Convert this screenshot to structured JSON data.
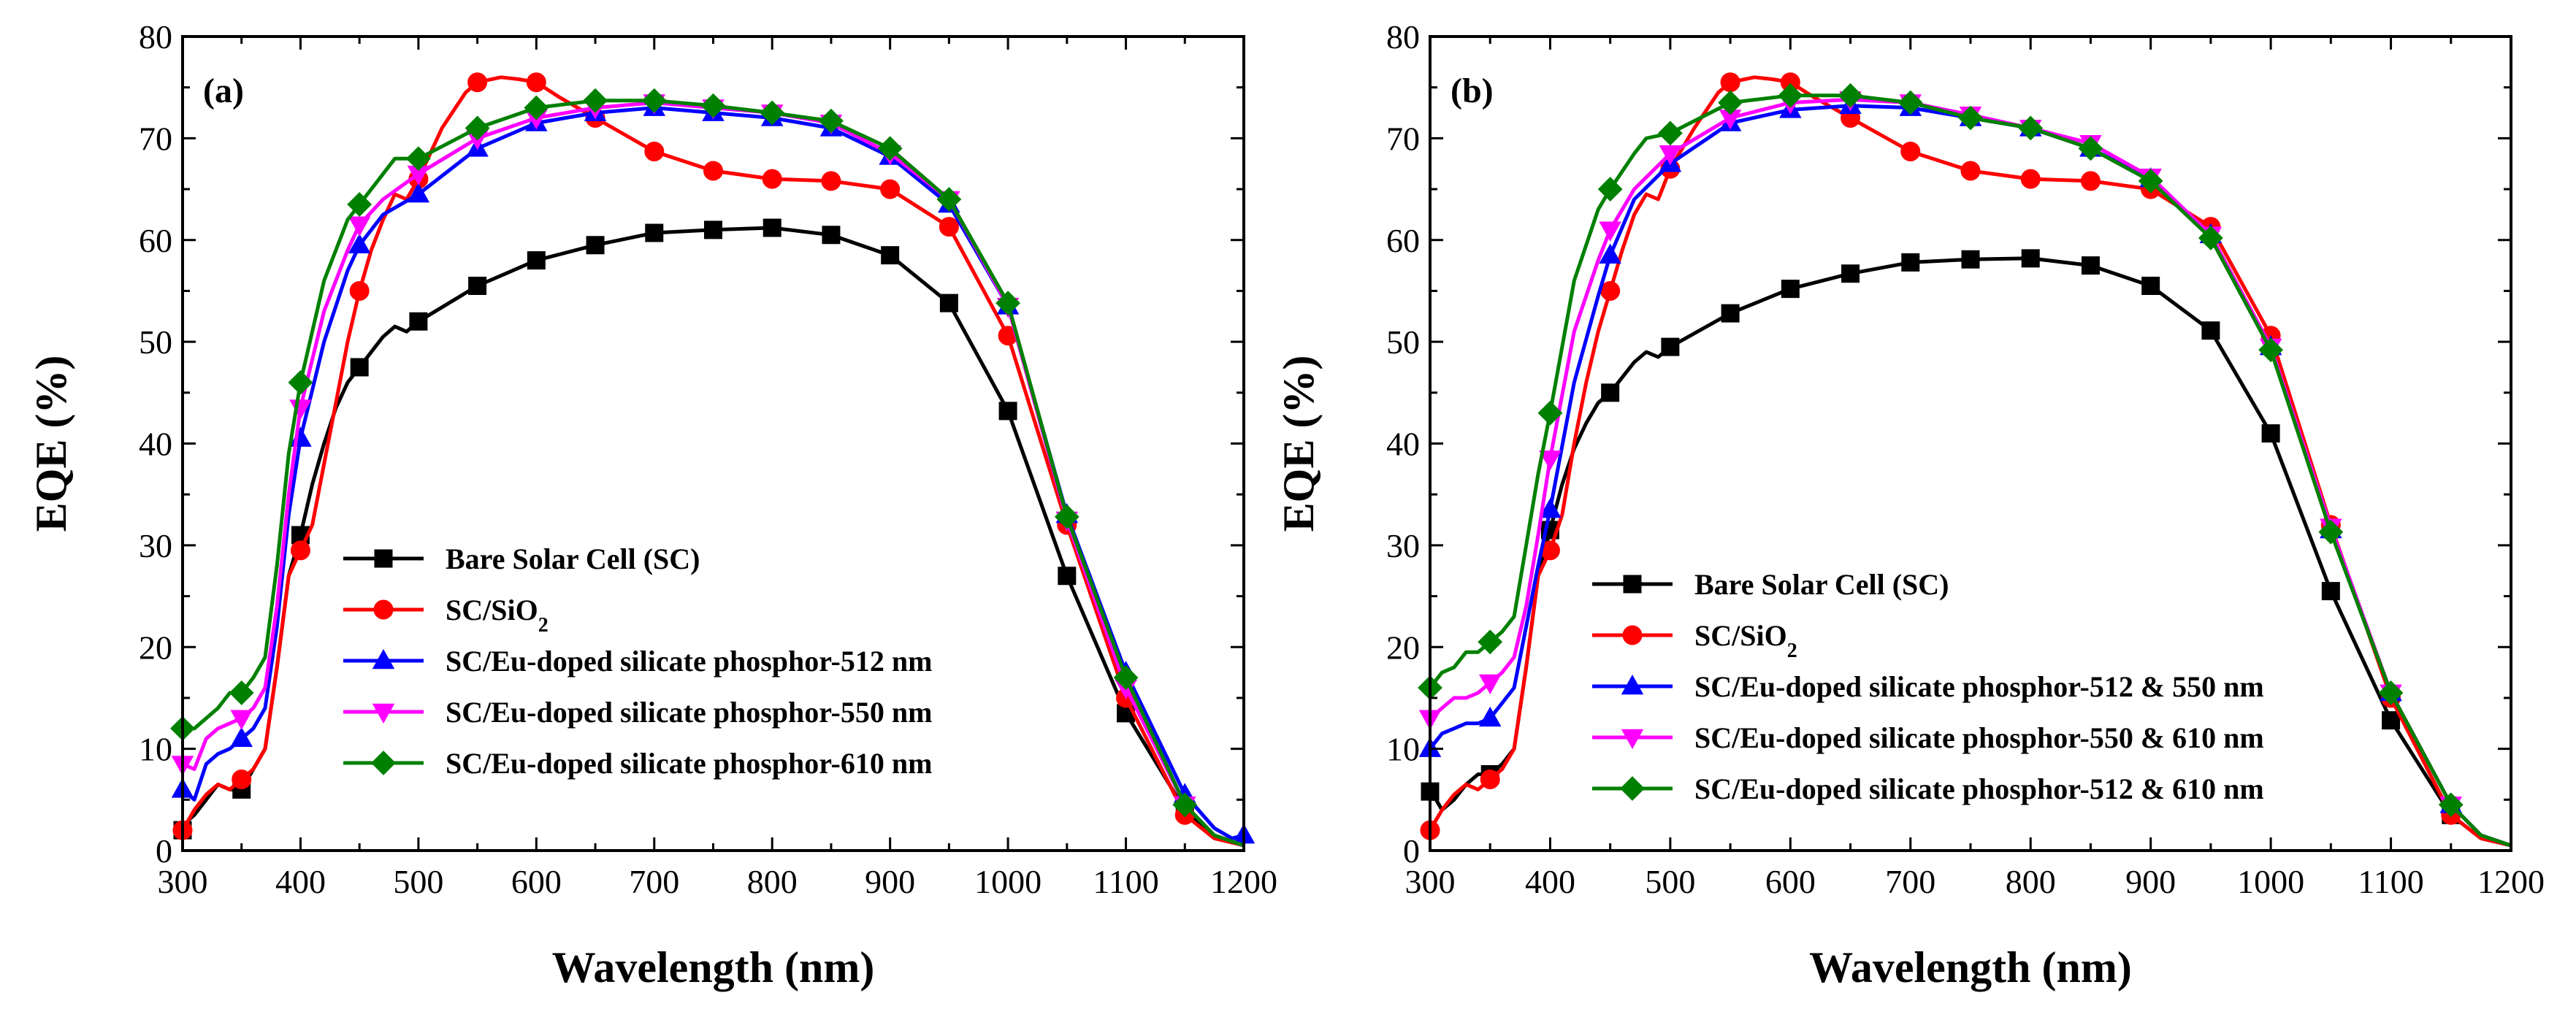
{
  "chart_data": [
    {
      "type": "line",
      "panel_label": "(a)",
      "xlabel": "Wavelength (nm)",
      "ylabel": "EQE (%)",
      "xlim": [
        300,
        1200
      ],
      "ylim": [
        0,
        80
      ],
      "xticks": [
        300,
        400,
        500,
        600,
        700,
        800,
        900,
        1000,
        1100,
        1200
      ],
      "yticks": [
        0,
        10,
        20,
        30,
        40,
        50,
        60,
        70,
        80
      ],
      "legend_position": "bottom-left",
      "series": [
        {
          "name": "Bare Solar Cell (SC)",
          "color": "#000000",
          "marker": "square",
          "x": [
            300,
            305,
            310,
            320,
            330,
            340,
            350,
            360,
            370,
            380,
            390,
            400,
            410,
            420,
            430,
            440,
            450,
            460,
            470,
            480,
            490,
            500,
            550,
            600,
            650,
            700,
            750,
            800,
            850,
            900,
            950,
            1000,
            1050,
            1100,
            1150,
            1175,
            1200
          ],
          "y": [
            2,
            3,
            3.5,
            5,
            6.5,
            6,
            6,
            8,
            10,
            18,
            27,
            31,
            36,
            40,
            43.5,
            46,
            47.5,
            49,
            50.5,
            51.5,
            51,
            52,
            55.5,
            58,
            59.5,
            60.7,
            61,
            61.2,
            60.5,
            58.5,
            53.8,
            43.2,
            27,
            13.5,
            4,
            1.5,
            0.5
          ],
          "markers_x": [
            300,
            350,
            400,
            450,
            500,
            550,
            600,
            650,
            700,
            750,
            800,
            850,
            900,
            950,
            1000,
            1050,
            1100,
            1150
          ]
        },
        {
          "name": "SC/SiO",
          "name_sub": "2",
          "color": "#ff0000",
          "marker": "circle",
          "x": [
            300,
            305,
            310,
            320,
            330,
            340,
            350,
            360,
            370,
            380,
            390,
            400,
            410,
            420,
            430,
            440,
            450,
            460,
            470,
            480,
            490,
            500,
            520,
            540,
            550,
            570,
            585,
            600,
            620,
            650,
            700,
            750,
            800,
            850,
            900,
            950,
            1000,
            1050,
            1100,
            1150,
            1175,
            1200
          ],
          "y": [
            2,
            3,
            4,
            5.5,
            6.5,
            6,
            7,
            8,
            10,
            18,
            27,
            29.5,
            32,
            38,
            44,
            50,
            55,
            59,
            62,
            64.5,
            64,
            66,
            71,
            74.5,
            75.5,
            76,
            75.8,
            75.5,
            74,
            72,
            68.7,
            66.8,
            66,
            65.8,
            65,
            61.3,
            50.6,
            32,
            15,
            3.5,
            1.2,
            0.5
          ],
          "markers_x": [
            300,
            350,
            400,
            450,
            500,
            550,
            600,
            650,
            700,
            750,
            800,
            850,
            900,
            950,
            1000,
            1050,
            1100,
            1150
          ]
        },
        {
          "name": "SC/Eu-doped silicate phosphor-512 nm",
          "color": "#0000ff",
          "marker": "triangle-up",
          "x": [
            300,
            310,
            320,
            330,
            340,
            350,
            360,
            370,
            380,
            390,
            400,
            420,
            440,
            450,
            470,
            500,
            550,
            600,
            650,
            700,
            750,
            800,
            850,
            900,
            950,
            1000,
            1050,
            1100,
            1150,
            1175,
            1190,
            1200
          ],
          "y": [
            6,
            5,
            8.5,
            9.5,
            10,
            11,
            12,
            14,
            22,
            33,
            40.5,
            50,
            57,
            59.5,
            62.5,
            64.5,
            69,
            71.5,
            72.5,
            73,
            72.5,
            72,
            71,
            68.2,
            63.5,
            53.5,
            33,
            17.5,
            5.5,
            2.2,
            1.2,
            1.5
          ],
          "markers_x": [
            300,
            350,
            400,
            450,
            500,
            550,
            600,
            650,
            700,
            750,
            800,
            850,
            900,
            950,
            1000,
            1050,
            1100,
            1150,
            1200
          ]
        },
        {
          "name": "SC/Eu-doped silicate phosphor-550 nm",
          "color": "#ff00ff",
          "marker": "triangle-down",
          "x": [
            300,
            310,
            320,
            330,
            340,
            350,
            360,
            370,
            380,
            390,
            400,
            420,
            440,
            450,
            470,
            500,
            550,
            600,
            650,
            700,
            750,
            800,
            850,
            900,
            950,
            1000,
            1050,
            1100,
            1150,
            1175,
            1200
          ],
          "y": [
            8.5,
            8,
            11,
            12,
            12.5,
            13,
            14,
            16,
            24,
            35,
            43.5,
            53,
            59,
            61.5,
            64,
            66.5,
            70,
            72,
            73,
            73.5,
            73,
            72.5,
            71.5,
            68.5,
            64,
            53.5,
            32.5,
            16,
            4.5,
            1.5,
            0.5
          ],
          "markers_x": [
            300,
            350,
            400,
            450,
            500,
            550,
            600,
            650,
            700,
            750,
            800,
            850,
            900,
            950,
            1000,
            1050,
            1100,
            1150
          ]
        },
        {
          "name": "SC/Eu-doped silicate phosphor-610 nm",
          "color": "#008000",
          "marker": "diamond",
          "x": [
            300,
            310,
            320,
            330,
            340,
            350,
            360,
            370,
            380,
            390,
            400,
            420,
            440,
            450,
            470,
            480,
            500,
            550,
            600,
            650,
            700,
            750,
            800,
            850,
            900,
            950,
            1000,
            1050,
            1100,
            1150,
            1175,
            1200
          ],
          "y": [
            12,
            12,
            13,
            14,
            15.5,
            15.5,
            17,
            19,
            28,
            39,
            46,
            56,
            62,
            63.5,
            66.5,
            68,
            68,
            71,
            73,
            73.7,
            73.7,
            73.2,
            72.5,
            71.7,
            69,
            64,
            53.8,
            32.8,
            17,
            4.5,
            1.5,
            0.5
          ],
          "markers_x": [
            300,
            350,
            400,
            450,
            500,
            550,
            600,
            650,
            700,
            750,
            800,
            850,
            900,
            950,
            1000,
            1050,
            1100,
            1150
          ]
        }
      ]
    },
    {
      "type": "line",
      "panel_label": "(b)",
      "xlabel": "Wavelength (nm)",
      "ylabel": "EQE (%)",
      "xlim": [
        300,
        1200
      ],
      "ylim": [
        0,
        80
      ],
      "xticks": [
        300,
        400,
        500,
        600,
        700,
        800,
        900,
        1000,
        1100,
        1200
      ],
      "yticks": [
        0,
        10,
        20,
        30,
        40,
        50,
        60,
        70,
        80
      ],
      "legend_position": "bottom-left",
      "series": [
        {
          "name": "Bare Solar Cell (SC)",
          "color": "#000000",
          "marker": "square",
          "x": [
            300,
            305,
            310,
            320,
            330,
            340,
            350,
            360,
            370,
            380,
            390,
            400,
            410,
            420,
            430,
            440,
            450,
            460,
            470,
            480,
            490,
            500,
            550,
            600,
            650,
            700,
            750,
            800,
            850,
            900,
            950,
            1000,
            1050,
            1100,
            1150,
            1175,
            1200
          ],
          "y": [
            5.8,
            5,
            4,
            5,
            6.5,
            7.5,
            7.5,
            8.5,
            10,
            18,
            27,
            31.5,
            36,
            39.5,
            42,
            44,
            45,
            46.5,
            48,
            49,
            48.5,
            49.5,
            52.8,
            55.2,
            56.7,
            57.8,
            58.1,
            58.2,
            57.5,
            55.5,
            51.1,
            41,
            25.5,
            12.8,
            3.5,
            1.2,
            0.5
          ],
          "markers_x": [
            300,
            350,
            400,
            450,
            500,
            550,
            600,
            650,
            700,
            750,
            800,
            850,
            900,
            950,
            1000,
            1050,
            1100,
            1150
          ]
        },
        {
          "name": "SC/SiO",
          "name_sub": "2",
          "color": "#ff0000",
          "marker": "circle",
          "x": [
            300,
            305,
            310,
            320,
            330,
            340,
            350,
            360,
            370,
            380,
            390,
            400,
            410,
            420,
            430,
            440,
            450,
            460,
            470,
            480,
            490,
            500,
            520,
            540,
            550,
            570,
            585,
            600,
            620,
            650,
            700,
            750,
            800,
            850,
            900,
            950,
            1000,
            1050,
            1100,
            1150,
            1175,
            1200
          ],
          "y": [
            2,
            3,
            4,
            5.5,
            6.5,
            6,
            7,
            8,
            10,
            18,
            27,
            29.5,
            33,
            40,
            46,
            51,
            55,
            59,
            62.5,
            64.5,
            64,
            67,
            71,
            74.5,
            75.5,
            76,
            75.8,
            75.5,
            74,
            72,
            68.7,
            66.8,
            66,
            65.8,
            65,
            61.3,
            50.6,
            32,
            15,
            3.5,
            1.2,
            0.5
          ],
          "markers_x": [
            300,
            350,
            400,
            450,
            500,
            550,
            600,
            650,
            700,
            750,
            800,
            850,
            900,
            950,
            1000,
            1050,
            1100,
            1150
          ]
        },
        {
          "name": "SC/Eu-doped silicate phosphor-512 & 550 nm",
          "color": "#0000ff",
          "marker": "triangle-up",
          "x": [
            300,
            310,
            320,
            330,
            340,
            350,
            360,
            370,
            380,
            390,
            400,
            420,
            440,
            450,
            470,
            500,
            550,
            600,
            650,
            700,
            750,
            800,
            850,
            900,
            950,
            1000,
            1050,
            1100,
            1150,
            1175,
            1200
          ],
          "y": [
            10,
            11.5,
            12,
            12.5,
            12.5,
            13,
            14.5,
            16,
            22,
            28,
            33.5,
            46,
            54.5,
            58.5,
            64,
            67.5,
            71.5,
            72.8,
            73.2,
            73,
            72,
            71,
            69,
            66,
            60.5,
            49.5,
            31.5,
            15.5,
            4.5,
            1.5,
            0.5
          ],
          "markers_x": [
            300,
            350,
            400,
            450,
            500,
            550,
            600,
            650,
            700,
            750,
            800,
            850,
            900,
            950,
            1000,
            1050,
            1100,
            1150
          ]
        },
        {
          "name": "SC/Eu-doped silicate phosphor-550 & 610 nm",
          "color": "#ff00ff",
          "marker": "triangle-down",
          "x": [
            300,
            310,
            320,
            330,
            340,
            350,
            360,
            370,
            380,
            390,
            400,
            420,
            440,
            450,
            470,
            500,
            550,
            600,
            650,
            700,
            750,
            800,
            850,
            900,
            950,
            1000,
            1050,
            1100,
            1150,
            1175,
            1200
          ],
          "y": [
            13,
            14,
            15,
            15,
            15.5,
            16.5,
            17.5,
            19,
            24,
            31,
            38.5,
            51,
            58,
            61,
            65,
            68.5,
            72,
            73.5,
            73.8,
            73.5,
            72.3,
            71,
            69.5,
            66.2,
            60.5,
            49.5,
            31.8,
            15.5,
            4.5,
            1.5,
            0.5
          ],
          "markers_x": [
            300,
            350,
            400,
            450,
            500,
            550,
            600,
            650,
            700,
            750,
            800,
            850,
            900,
            950,
            1000,
            1050,
            1100,
            1150
          ]
        },
        {
          "name": "SC/Eu-doped silicate phosphor-512 & 610 nm",
          "color": "#008000",
          "marker": "diamond",
          "x": [
            300,
            310,
            320,
            330,
            340,
            350,
            360,
            370,
            380,
            390,
            400,
            420,
            440,
            450,
            470,
            480,
            500,
            550,
            600,
            650,
            700,
            750,
            800,
            850,
            900,
            950,
            1000,
            1050,
            1100,
            1150,
            1175,
            1200
          ],
          "y": [
            16,
            17.5,
            18,
            19.5,
            19.5,
            20.5,
            21.5,
            23,
            30,
            37,
            43,
            56,
            63,
            65,
            68.5,
            70,
            70.5,
            73.5,
            74.2,
            74.2,
            73.5,
            72,
            71,
            69,
            65.8,
            60.2,
            49.2,
            31.3,
            15.5,
            4.5,
            1.5,
            0.5
          ],
          "markers_x": [
            300,
            350,
            400,
            450,
            500,
            550,
            600,
            650,
            700,
            750,
            800,
            850,
            900,
            950,
            1000,
            1050,
            1100,
            1150
          ]
        }
      ]
    }
  ]
}
